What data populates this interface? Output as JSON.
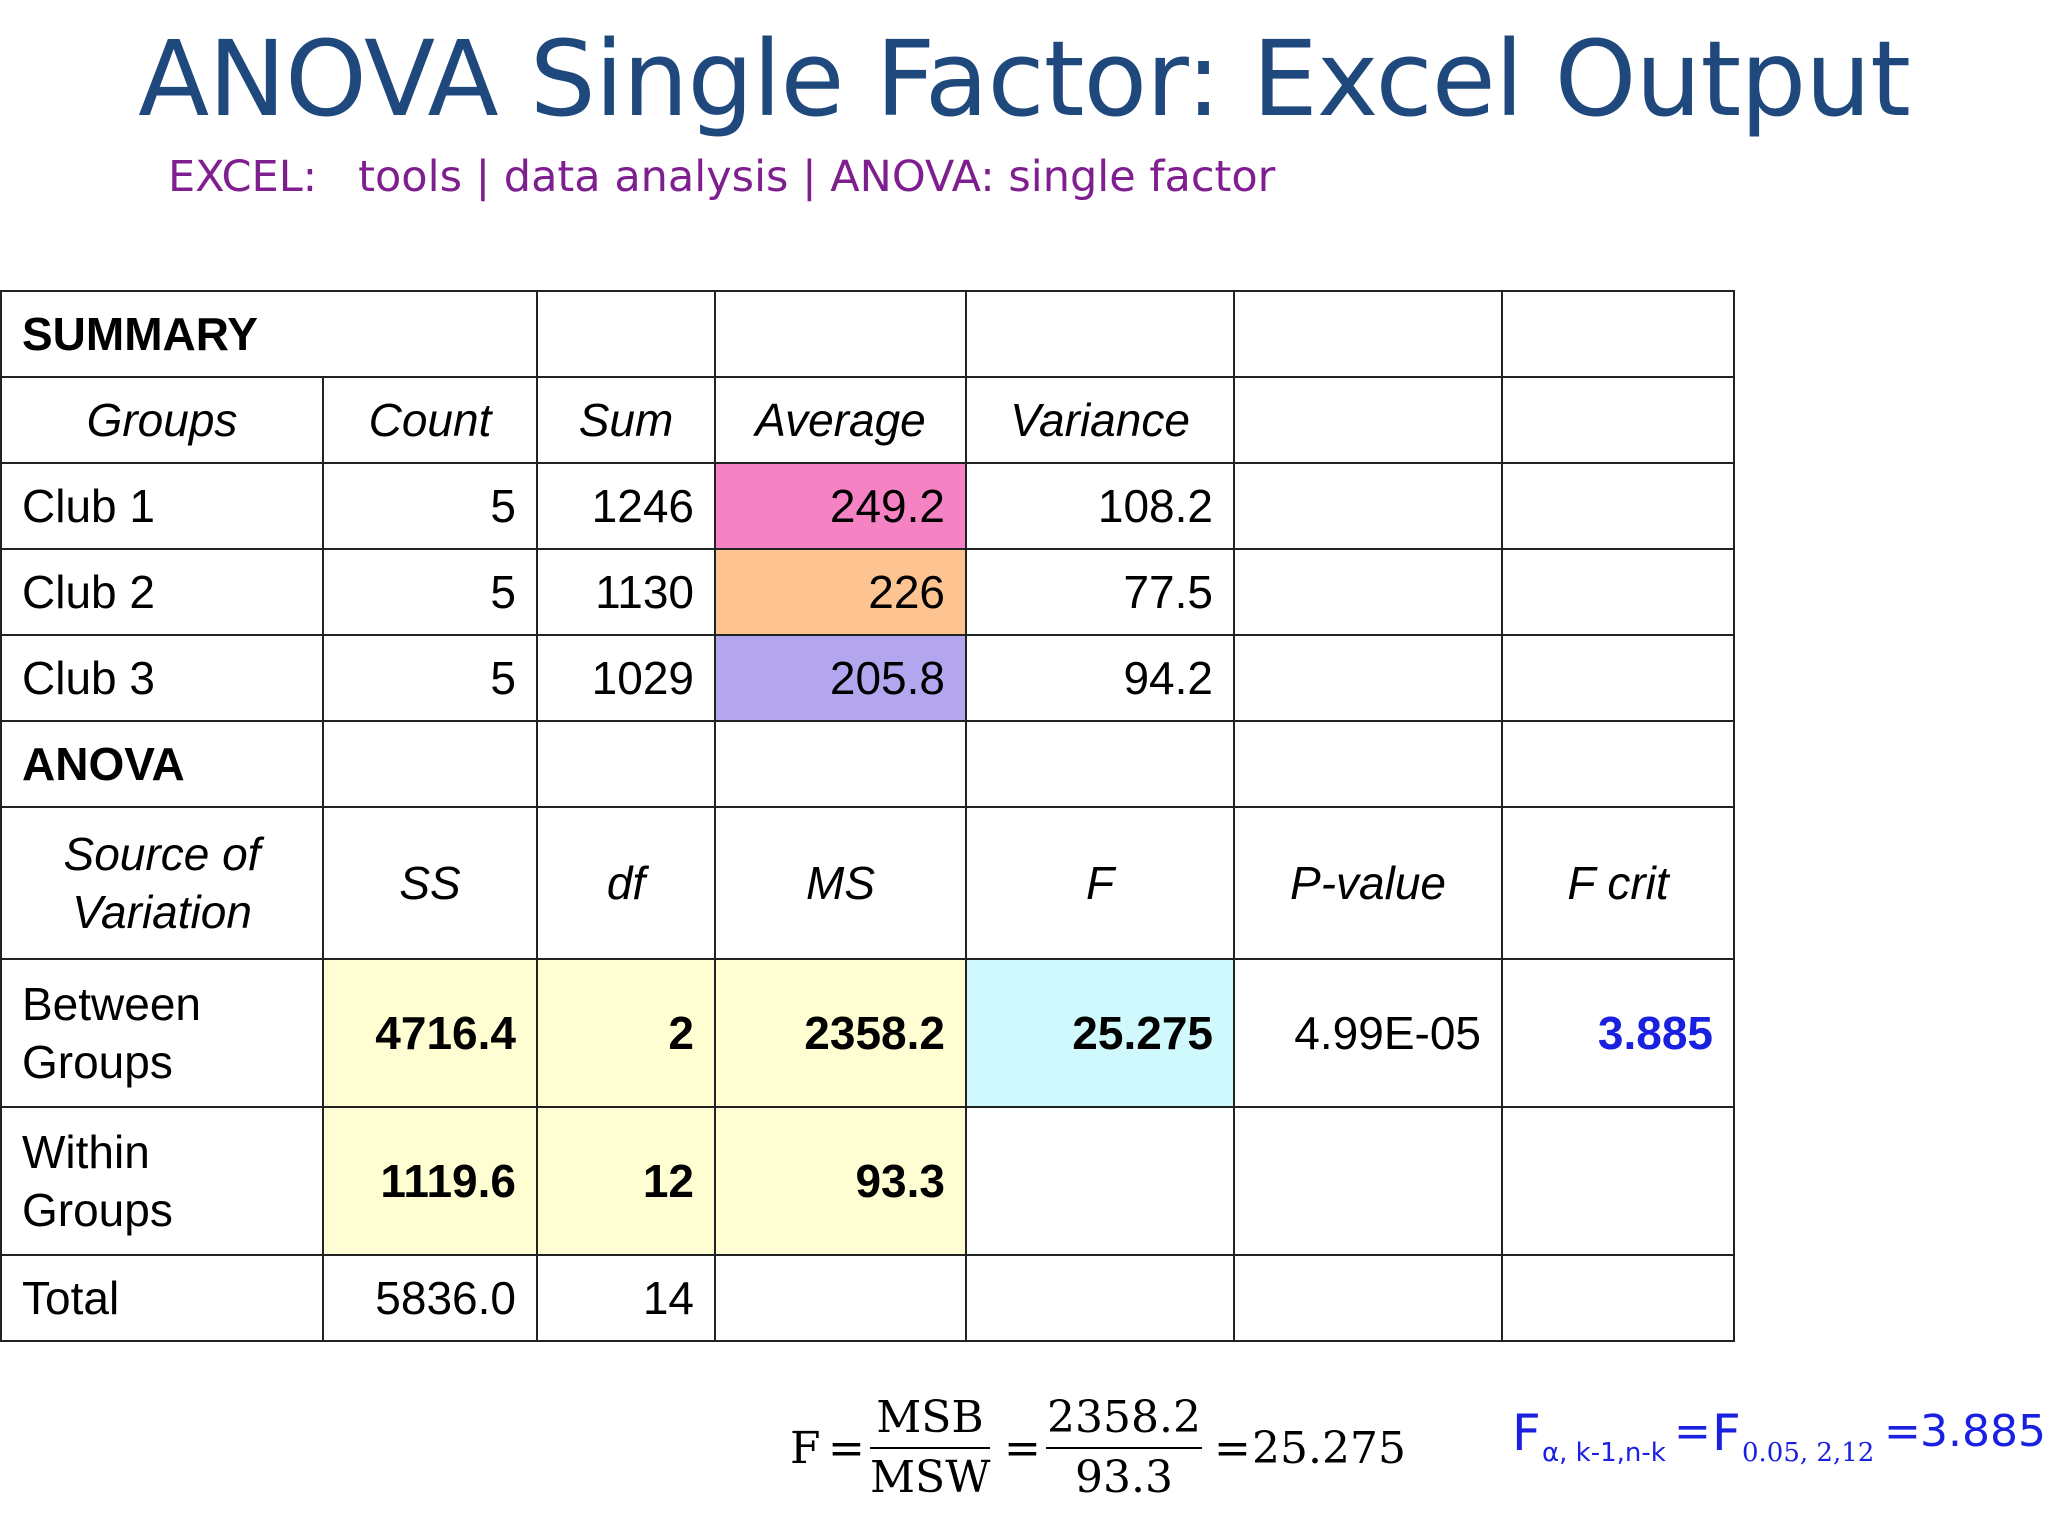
{
  "title": "ANOVA Single Factor: Excel Output",
  "subtitle": "EXCEL:   tools | data analysis | ANOVA: single factor",
  "summary": {
    "heading": "SUMMARY",
    "columns": [
      "Groups",
      "Count",
      "Sum",
      "Average",
      "Variance"
    ],
    "rows": [
      {
        "group": "Club 1",
        "count": "5",
        "sum": "1246",
        "average": "249.2",
        "variance": "108.2",
        "average_color": "#f582c3"
      },
      {
        "group": "Club 2",
        "count": "5",
        "sum": "1130",
        "average": "226",
        "variance": "77.5",
        "average_color": "#fdc391"
      },
      {
        "group": "Club 3",
        "count": "5",
        "sum": "1029",
        "average": "205.8",
        "variance": "94.2",
        "average_color": "#b4a6ee"
      }
    ]
  },
  "anova": {
    "heading": "ANOVA",
    "columns": [
      "Source of Variation",
      "SS",
      "df",
      "MS",
      "F",
      "P-value",
      "F crit"
    ],
    "rows": [
      {
        "source": "Between Groups",
        "ss": "4716.4",
        "df": "2",
        "ms": "2358.2",
        "f": "25.275",
        "p_value": "4.99E-05",
        "f_crit": "3.885"
      },
      {
        "source": "Within Groups",
        "ss": "1119.6",
        "df": "12",
        "ms": "93.3"
      },
      {
        "source": "Total",
        "ss": "5836.0",
        "df": "14"
      }
    ],
    "highlight_colors": {
      "yellow": "#fefed2",
      "cyan": "#cff9fd",
      "fcrit_text": "#1a20e0"
    }
  },
  "formula": {
    "lhs": "F",
    "eq": "=",
    "frac1_num": "MSB",
    "frac1_den": "MSW",
    "frac2_num": "2358.2",
    "frac2_den": "93.3",
    "result": "25.275"
  },
  "critical": {
    "f": "F",
    "sub1": "α, k-1,n-k",
    "eq1": "=",
    "f2": "F",
    "sub2": "0.05, 2,12",
    "eq2": "=",
    "value": "3.885"
  }
}
